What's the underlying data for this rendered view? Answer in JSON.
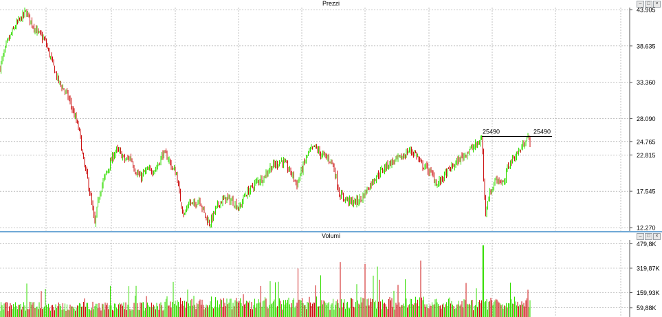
{
  "panels": {
    "price_title": "Prezzi",
    "volume_title": "Volumi"
  },
  "window_buttons": [
    "–",
    "□",
    "×"
  ],
  "colors": {
    "up": "#33dd00",
    "down": "#cc1111",
    "grid": "#9a9a9a",
    "divider": "#6fa8d6",
    "level": "#000000"
  },
  "chart_data": [
    {
      "type": "candlestick",
      "title": "Prezzi",
      "ylim": [
        12270,
        43905
      ],
      "ytick_labels": [
        "43.905",
        "38.635",
        "33.360",
        "28.090",
        "24.765",
        "22.815",
        "17.545",
        "12.270"
      ],
      "ytick_values": [
        43905,
        38635,
        33360,
        28090,
        24765,
        22815,
        17545,
        12270
      ],
      "level_line": {
        "value": 25490,
        "labels": [
          "25490",
          "25490"
        ]
      },
      "trend_points": [
        [
          0,
          35500
        ],
        [
          10,
          39000
        ],
        [
          22,
          41500
        ],
        [
          38,
          43600
        ],
        [
          46,
          42000
        ],
        [
          55,
          40500
        ],
        [
          65,
          39500
        ],
        [
          75,
          36500
        ],
        [
          85,
          33500
        ],
        [
          95,
          32000
        ],
        [
          100,
          31000
        ],
        [
          110,
          28000
        ],
        [
          116,
          26000
        ],
        [
          121,
          22000
        ],
        [
          127,
          19500
        ],
        [
          133,
          16000
        ],
        [
          138,
          12700
        ],
        [
          145,
          17500
        ],
        [
          152,
          19500
        ],
        [
          160,
          21500
        ],
        [
          168,
          23500
        ],
        [
          176,
          23000
        ],
        [
          182,
          22000
        ],
        [
          190,
          22500
        ],
        [
          197,
          20500
        ],
        [
          204,
          19500
        ],
        [
          212,
          20500
        ],
        [
          220,
          20500
        ],
        [
          228,
          21000
        ],
        [
          237,
          23000
        ],
        [
          244,
          22500
        ],
        [
          250,
          21000
        ],
        [
          257,
          20000
        ],
        [
          262,
          16500
        ],
        [
          268,
          14000
        ],
        [
          275,
          16000
        ],
        [
          282,
          15500
        ],
        [
          290,
          16500
        ],
        [
          298,
          14000
        ],
        [
          305,
          12800
        ],
        [
          312,
          14500
        ],
        [
          320,
          16000
        ],
        [
          330,
          16500
        ],
        [
          340,
          16000
        ],
        [
          348,
          15000
        ],
        [
          356,
          17000
        ],
        [
          366,
          18000
        ],
        [
          374,
          19000
        ],
        [
          383,
          19500
        ],
        [
          393,
          21000
        ],
        [
          402,
          21500
        ],
        [
          410,
          22000
        ],
        [
          418,
          21000
        ],
        [
          425,
          20000
        ],
        [
          432,
          18500
        ],
        [
          440,
          21000
        ],
        [
          448,
          23000
        ],
        [
          458,
          24000
        ],
        [
          466,
          23000
        ],
        [
          474,
          22500
        ],
        [
          482,
          22000
        ],
        [
          488,
          20000
        ],
        [
          494,
          17000
        ],
        [
          502,
          16500
        ],
        [
          510,
          16000
        ],
        [
          518,
          16000
        ],
        [
          526,
          16500
        ],
        [
          535,
          18000
        ],
        [
          545,
          19500
        ],
        [
          555,
          20500
        ],
        [
          565,
          21500
        ],
        [
          575,
          22000
        ],
        [
          585,
          22500
        ],
        [
          595,
          23500
        ],
        [
          605,
          23000
        ],
        [
          612,
          21500
        ],
        [
          620,
          21000
        ],
        [
          628,
          20000
        ],
        [
          636,
          18500
        ],
        [
          644,
          19500
        ],
        [
          652,
          20500
        ],
        [
          662,
          21500
        ],
        [
          672,
          22500
        ],
        [
          682,
          23500
        ],
        [
          690,
          24000
        ],
        [
          696,
          24500
        ],
        [
          701,
          25400
        ],
        [
          704,
          18500
        ],
        [
          706,
          14500
        ],
        [
          710,
          16500
        ],
        [
          716,
          18000
        ],
        [
          722,
          19500
        ],
        [
          728,
          19000
        ],
        [
          734,
          18500
        ],
        [
          738,
          21000
        ],
        [
          744,
          22000
        ],
        [
          752,
          23000
        ],
        [
          760,
          24000
        ],
        [
          766,
          25400
        ],
        [
          772,
          24800
        ]
      ]
    },
    {
      "type": "bar",
      "title": "Volumi",
      "ylim": [
        0,
        500000
      ],
      "ytick_labels": [
        "479,8K",
        "319,87K",
        "159,93K",
        "59,88K"
      ],
      "ytick_values": [
        479800,
        319870,
        159930,
        59880
      ]
    }
  ]
}
